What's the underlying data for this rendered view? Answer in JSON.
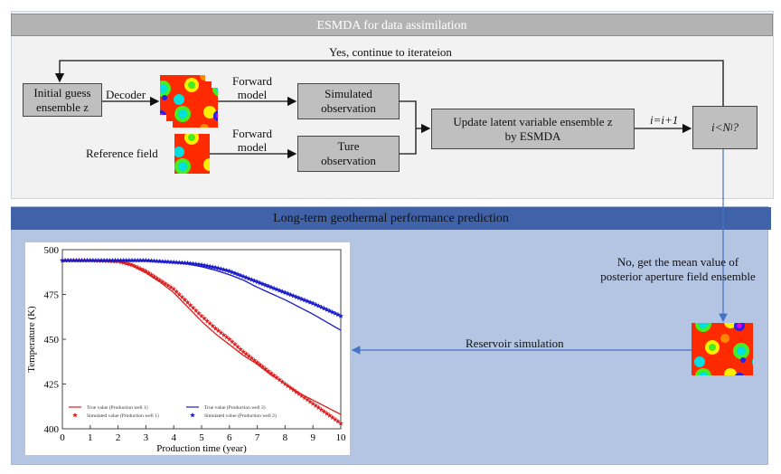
{
  "esmda": {
    "header": "ESMDA for data assimilation",
    "loop_label": "Yes, continue to iterateion",
    "initial_guess": [
      "Initial guess",
      "ensemble z"
    ],
    "decoder_label": "Decoder",
    "forward_model_1": [
      "Forward",
      "model"
    ],
    "forward_model_2": [
      "Forward",
      "model"
    ],
    "simulated_obs": [
      "Simulated",
      "observation"
    ],
    "true_obs": [
      "Ture",
      "observation"
    ],
    "reference_field": "Reference field",
    "update": [
      "Update latent variable ensemble z",
      "by ESMDA"
    ],
    "increment": "i=i+1",
    "condition": "i<N",
    "condition_sub": "l",
    "condition_q": "?"
  },
  "prediction": {
    "header": "Long-term geothermal performance prediction",
    "no_label": [
      "No, get the mean value of",
      "posterior aperture field ensemble"
    ],
    "reservoir_label": "Reservoir simulation"
  },
  "colors": {
    "well1": "#e02020",
    "well2": "#1a1acc",
    "header_gray": "#b3b3b3",
    "header_blue": "#3f62a8",
    "panel_blue": "#b4c5e4"
  },
  "chart_data": {
    "type": "line",
    "xlabel": "Production time (year)",
    "ylabel": "Temperature (K)",
    "xlim": [
      0,
      10
    ],
    "ylim": [
      400,
      500
    ],
    "xticks": [
      0,
      1,
      2,
      3,
      4,
      5,
      6,
      7,
      8,
      9,
      10
    ],
    "yticks": [
      400,
      425,
      450,
      475,
      500
    ],
    "legend_position": "bottom",
    "x": [
      0,
      1,
      2,
      2.5,
      3,
      3.5,
      4,
      4.5,
      5,
      5.5,
      6,
      6.5,
      7,
      7.5,
      8,
      8.5,
      9,
      9.5,
      10
    ],
    "series": [
      {
        "name": "True value (Production well 1)",
        "style": "line",
        "color": "#e02020",
        "values": [
          494,
          494,
          493.5,
          491,
          487,
          482,
          476,
          468,
          460,
          453,
          447,
          441,
          436,
          430,
          425,
          420,
          416,
          412,
          408
        ]
      },
      {
        "name": "True value (Production well 2)",
        "style": "line",
        "color": "#1a1acc",
        "values": [
          494,
          494,
          494,
          494,
          493.8,
          493.5,
          493,
          492,
          490.5,
          488.5,
          486,
          483,
          479,
          475.5,
          472,
          468,
          464,
          459.5,
          455
        ]
      },
      {
        "name": "Simulated value (Production well 1)",
        "style": "marker",
        "color": "#e02020",
        "values": [
          494,
          494,
          493.5,
          491.5,
          488,
          483,
          478,
          470.5,
          463,
          456,
          450,
          443,
          437,
          431,
          425,
          419.5,
          414,
          408.5,
          403
        ]
      },
      {
        "name": "Simulated value (Production well 2)",
        "style": "marker",
        "color": "#1a1acc",
        "values": [
          494,
          494,
          494,
          494,
          494,
          493.5,
          493,
          492.5,
          491.5,
          490,
          488,
          485,
          482,
          479,
          476,
          473,
          470,
          466.5,
          463
        ]
      }
    ]
  }
}
